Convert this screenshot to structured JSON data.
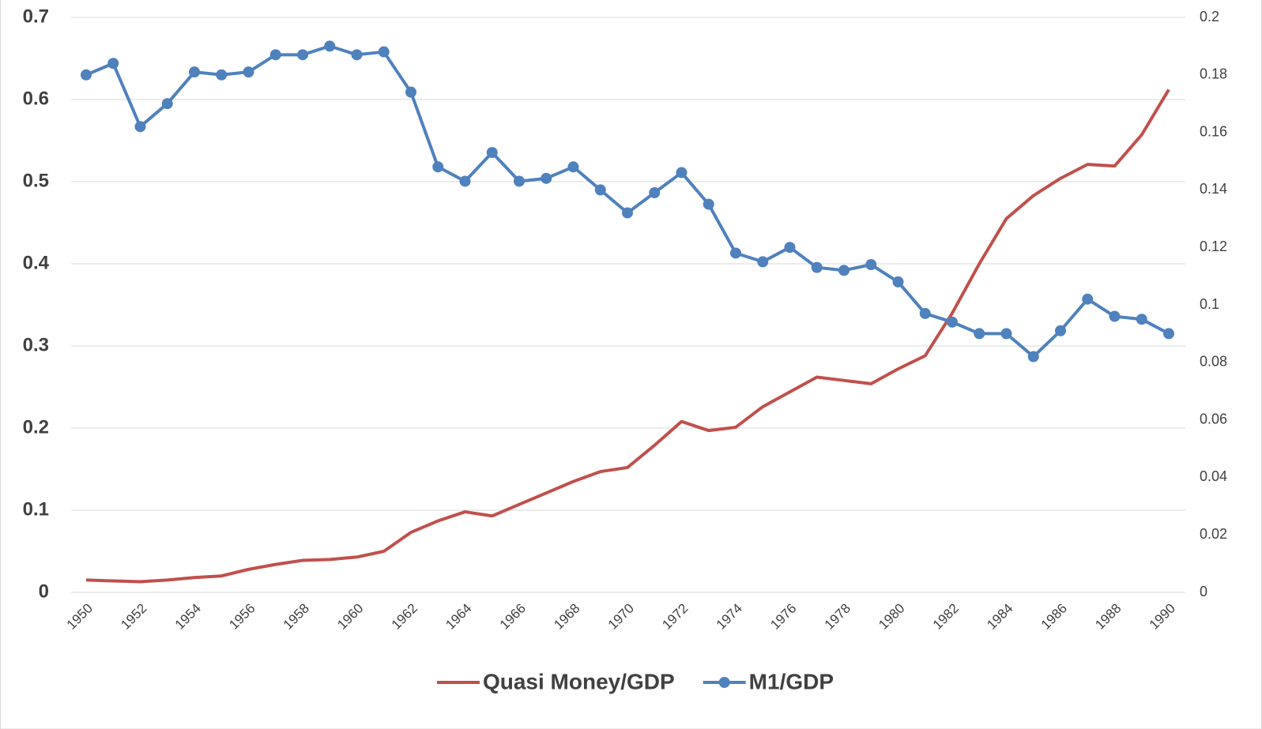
{
  "chart_data": {
    "type": "line",
    "x": [
      1950,
      1951,
      1952,
      1953,
      1954,
      1955,
      1956,
      1957,
      1958,
      1959,
      1960,
      1961,
      1962,
      1963,
      1964,
      1965,
      1966,
      1967,
      1968,
      1969,
      1970,
      1971,
      1972,
      1973,
      1974,
      1975,
      1976,
      1977,
      1978,
      1979,
      1980,
      1981,
      1982,
      1983,
      1984,
      1985,
      1986,
      1987,
      1988,
      1989,
      1990
    ],
    "xlim": [
      1950,
      1990
    ],
    "xticks": [
      1950,
      1952,
      1954,
      1956,
      1958,
      1960,
      1962,
      1964,
      1966,
      1968,
      1970,
      1972,
      1974,
      1976,
      1978,
      1980,
      1982,
      1984,
      1986,
      1988,
      1990
    ],
    "ylim": [
      0,
      0.7
    ],
    "yticks": [
      0,
      0.1,
      0.2,
      0.3,
      0.4,
      0.5,
      0.6,
      0.7
    ],
    "y2lim": [
      0,
      0.2
    ],
    "y2ticks": [
      0,
      0.02,
      0.04,
      0.06,
      0.08,
      0.1,
      0.12,
      0.14,
      0.16,
      0.18,
      0.2
    ],
    "grid": true,
    "legend": "bottom",
    "series": [
      {
        "name": "Quasi Money/GDP",
        "color": "#c0504d",
        "axis": "y",
        "values": [
          0.015,
          0.014,
          0.013,
          0.015,
          0.018,
          0.02,
          0.028,
          0.034,
          0.039,
          0.04,
          0.043,
          0.05,
          0.073,
          0.087,
          0.098,
          0.093,
          0.107,
          0.121,
          0.135,
          0.147,
          0.152,
          0.179,
          0.208,
          0.197,
          0.201,
          0.226,
          0.244,
          0.262,
          0.258,
          0.254,
          0.272,
          0.288,
          0.34,
          0.4,
          0.455,
          0.483,
          0.504,
          0.521,
          0.519,
          0.557,
          0.612
        ]
      },
      {
        "name": "M1/GDP",
        "color": "#4f81bd",
        "axis": "y2",
        "marker": "circle",
        "values": [
          0.18,
          0.184,
          0.162,
          0.17,
          0.181,
          0.18,
          0.181,
          0.187,
          0.187,
          0.19,
          0.187,
          0.188,
          0.174,
          0.148,
          0.143,
          0.153,
          0.143,
          0.144,
          0.148,
          0.14,
          0.132,
          0.139,
          0.146,
          0.135,
          0.118,
          0.115,
          0.12,
          0.113,
          0.112,
          0.114,
          0.108,
          0.097,
          0.094,
          0.09,
          0.09,
          0.082,
          0.091,
          0.102,
          0.096,
          0.095,
          0.09
        ]
      }
    ]
  }
}
